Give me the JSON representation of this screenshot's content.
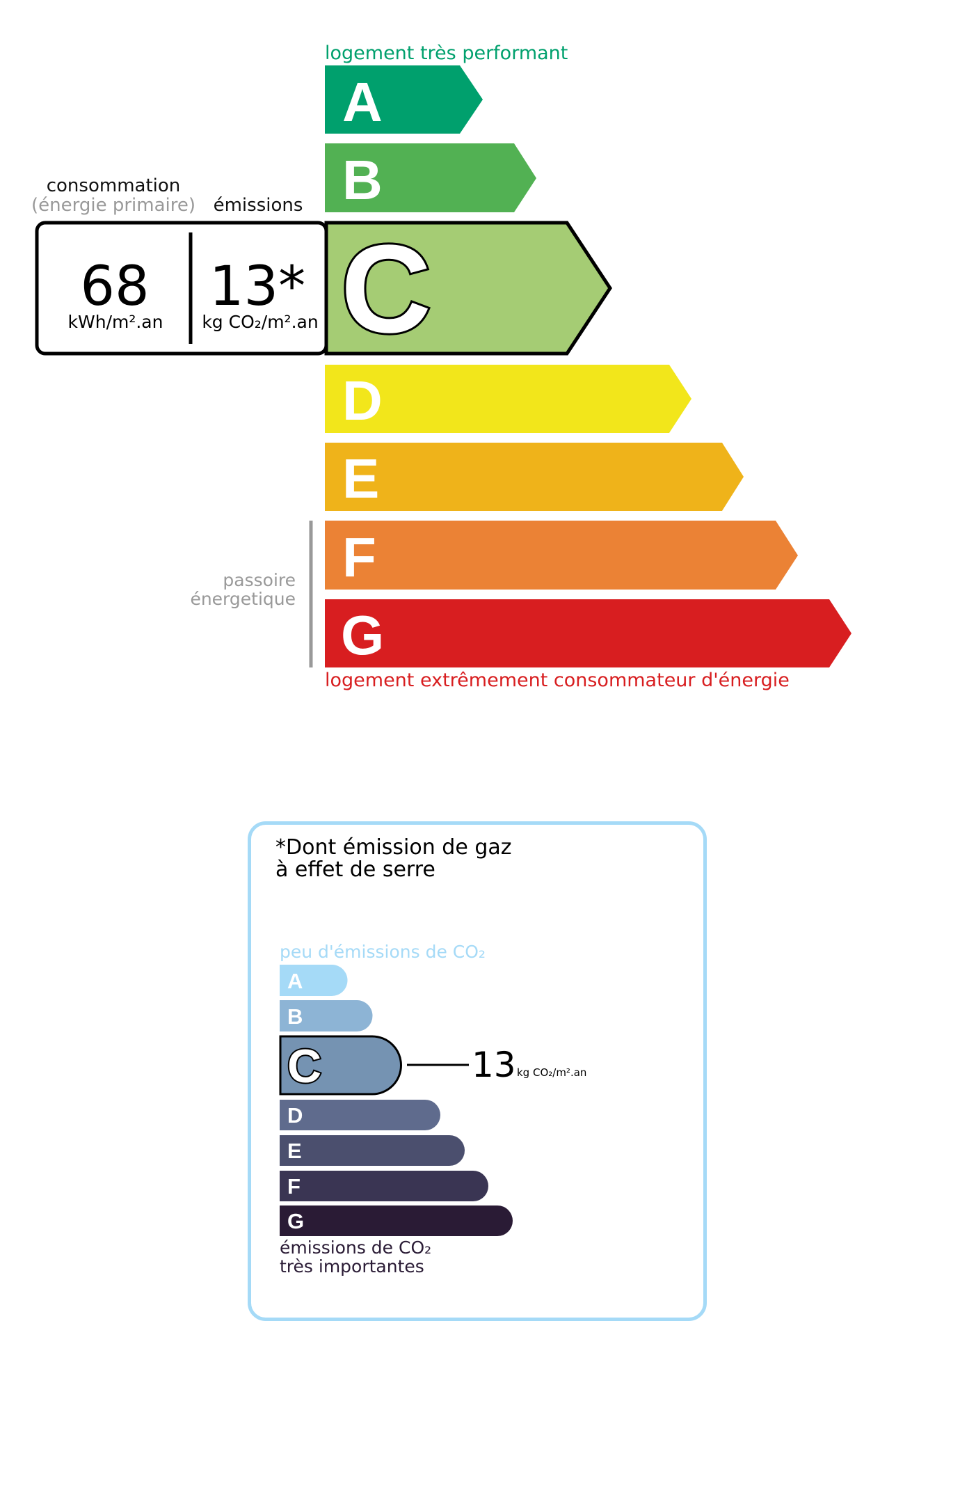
{
  "dpe": {
    "top_label": "logement très performant",
    "bottom_label": "logement extrêmement consommateur d'énergie",
    "consommation_label": "consommation",
    "energie_primaire_label": "(énergie primaire)",
    "emissions_label": "émissions",
    "consumption_value": "68",
    "consumption_unit": "kWh/m².an",
    "emission_value": "13*",
    "emission_unit": "kg CO₂/m².an",
    "passoire_line1": "passoire",
    "passoire_line2": "énergetique",
    "current_class": "C",
    "classes": [
      {
        "letter": "A",
        "color": "#00a06d"
      },
      {
        "letter": "B",
        "color": "#52b153"
      },
      {
        "letter": "C",
        "color": "#a5cc74"
      },
      {
        "letter": "D",
        "color": "#f2e61b"
      },
      {
        "letter": "E",
        "color": "#efb31a"
      },
      {
        "letter": "F",
        "color": "#eb8235"
      },
      {
        "letter": "G",
        "color": "#d81e20"
      }
    ],
    "top_label_color": "#00a06d",
    "bottom_label_color": "#d81e20"
  },
  "ges": {
    "title_line1": "*Dont émission de gaz",
    "title_line2": "à effet de serre",
    "top_label": "peu d'émissions de CO₂",
    "bottom_line1": "émissions de CO₂",
    "bottom_line2": "très importantes",
    "value": "13",
    "unit": "kg CO₂/m².an",
    "current_class": "C",
    "border_color": "#a5daf7",
    "classes": [
      {
        "letter": "A",
        "color": "#a5daf7"
      },
      {
        "letter": "B",
        "color": "#8db4d5"
      },
      {
        "letter": "C",
        "color": "#7593b2"
      },
      {
        "letter": "D",
        "color": "#5f6b8d"
      },
      {
        "letter": "E",
        "color": "#4b4f6e"
      },
      {
        "letter": "F",
        "color": "#3a3553"
      },
      {
        "letter": "G",
        "color": "#2a1b35"
      }
    ]
  }
}
